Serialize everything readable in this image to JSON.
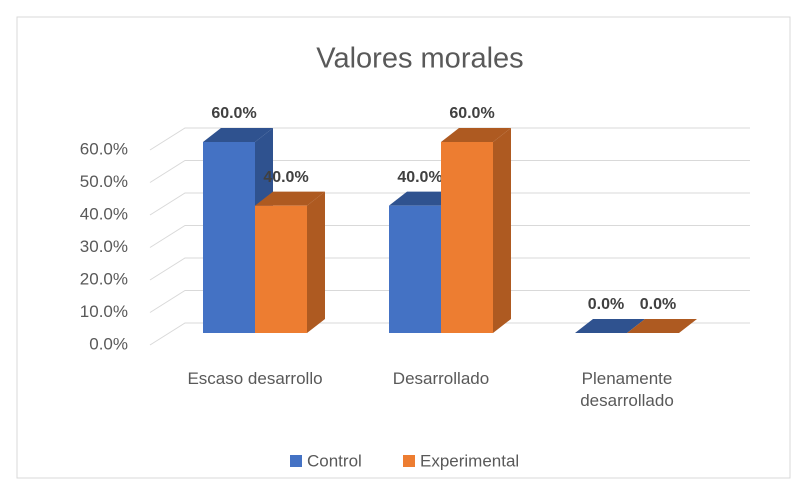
{
  "chart_data": {
    "type": "bar3d",
    "title": "Valores morales",
    "categories": [
      "Escaso desarrollo",
      "Desarrollado",
      "Plenamente desarrollado"
    ],
    "series": [
      {
        "name": "Control",
        "color": "#4472c4",
        "side": "#2f528f",
        "values": [
          60,
          40,
          0
        ],
        "value_labels": [
          "60.0%",
          "40.0%",
          "0.0%"
        ]
      },
      {
        "name": "Experimental",
        "color": "#ed7d31",
        "side": "#ae5a21",
        "values": [
          40,
          60,
          0
        ],
        "value_labels": [
          "40.0%",
          "60.0%",
          "0.0%"
        ]
      }
    ],
    "ylim": [
      0,
      60
    ],
    "yticks": [
      {
        "value": 0,
        "label": "0.0%"
      },
      {
        "value": 10,
        "label": "10.0%"
      },
      {
        "value": 20,
        "label": "20.0%"
      },
      {
        "value": 30,
        "label": "30.0%"
      },
      {
        "value": 40,
        "label": "40.0%"
      },
      {
        "value": 50,
        "label": "50.0%"
      },
      {
        "value": 60,
        "label": "60.0%"
      }
    ],
    "grid": true,
    "legend": "bottom"
  }
}
